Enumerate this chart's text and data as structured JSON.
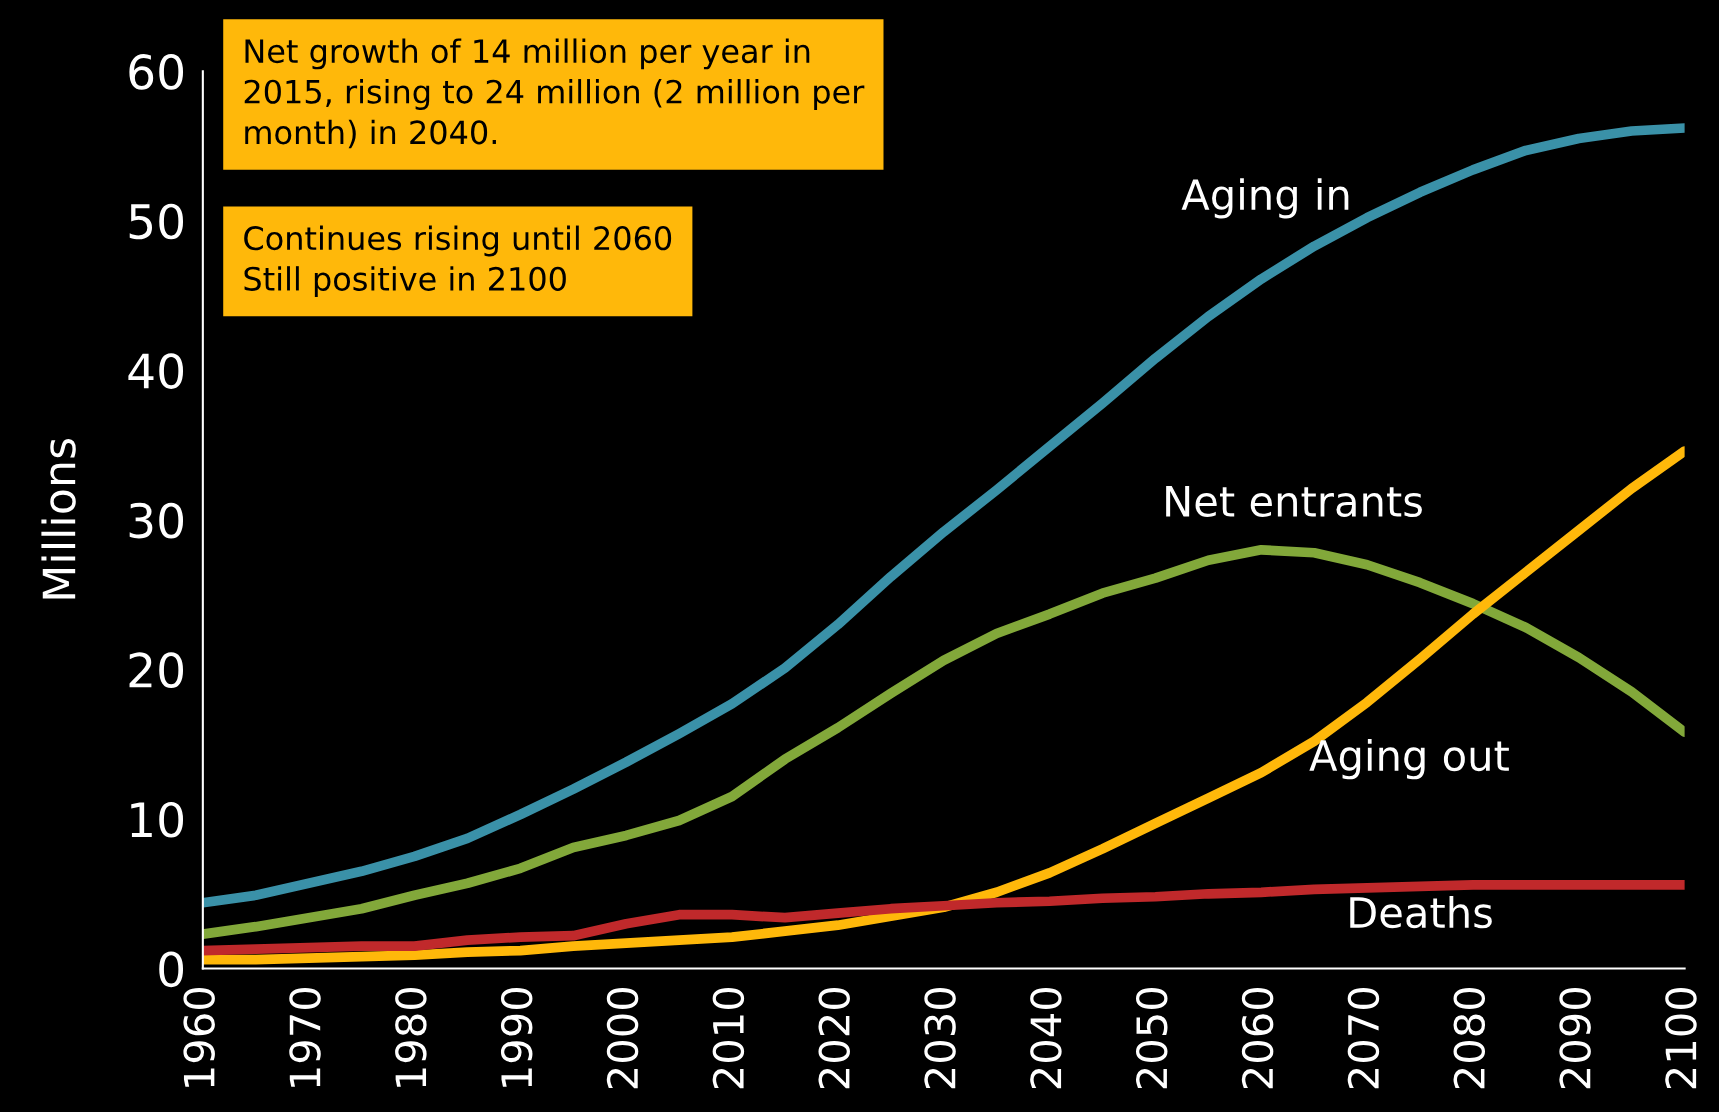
{
  "chart_data": {
    "type": "line",
    "ylabel": "Millions",
    "x": [
      1960,
      1965,
      1970,
      1975,
      1980,
      1985,
      1990,
      1995,
      2000,
      2005,
      2010,
      2015,
      2020,
      2025,
      2030,
      2035,
      2040,
      2045,
      2050,
      2055,
      2060,
      2065,
      2070,
      2075,
      2080,
      2085,
      2090,
      2095,
      2100
    ],
    "series": [
      {
        "name": "Aging in",
        "color": "#3a91a8",
        "values": [
          4.4,
          4.9,
          5.7,
          6.5,
          7.5,
          8.7,
          10.3,
          12.0,
          13.8,
          15.7,
          17.7,
          20.1,
          23.0,
          26.2,
          29.2,
          32.0,
          34.9,
          37.8,
          40.8,
          43.6,
          46.1,
          48.3,
          50.2,
          51.9,
          53.4,
          54.7,
          55.5,
          56.0,
          56.2
        ]
      },
      {
        "name": "Net entrants",
        "color": "#82a83a",
        "values": [
          2.3,
          2.8,
          3.4,
          4.0,
          4.9,
          5.7,
          6.7,
          8.1,
          8.9,
          9.9,
          11.5,
          14.0,
          16.1,
          18.4,
          20.6,
          22.4,
          23.7,
          25.1,
          26.1,
          27.3,
          28.0,
          27.8,
          27.0,
          25.8,
          24.4,
          22.8,
          20.8,
          18.5,
          15.8
        ]
      },
      {
        "name": "Aging out",
        "color": "#ffb80a",
        "values": [
          0.6,
          0.6,
          0.7,
          0.8,
          0.9,
          1.1,
          1.2,
          1.5,
          1.7,
          1.9,
          2.1,
          2.5,
          2.9,
          3.5,
          4.1,
          5.1,
          6.4,
          8.0,
          9.7,
          11.4,
          13.1,
          15.2,
          17.8,
          20.7,
          23.7,
          26.5,
          29.3,
          32.1,
          34.6
        ]
      },
      {
        "name": "Deaths",
        "color": "#c0292b",
        "values": [
          1.2,
          1.3,
          1.4,
          1.5,
          1.5,
          1.9,
          2.1,
          2.2,
          3.0,
          3.6,
          3.6,
          3.4,
          3.7,
          4.0,
          4.2,
          4.4,
          4.5,
          4.7,
          4.8,
          5.0,
          5.1,
          5.3,
          5.4,
          5.5,
          5.6,
          5.6,
          5.6,
          5.6,
          5.6
        ]
      }
    ],
    "xlim": [
      1960,
      2100
    ],
    "xticks": [
      1960,
      1970,
      1980,
      1990,
      2000,
      2010,
      2020,
      2030,
      2040,
      2050,
      2060,
      2070,
      2080,
      2090,
      2100
    ],
    "ylim": [
      0,
      60
    ],
    "yticks": [
      0,
      10,
      20,
      30,
      40,
      50,
      60
    ],
    "grid": false,
    "legend": false,
    "line_style": "solid",
    "annotations": [
      "Net growth of 14 million per year in\n2015, rising to 24 million (2 million per\nmonth) in 2040.",
      "Continues rising until 2060\nStill positive in 2100"
    ]
  }
}
